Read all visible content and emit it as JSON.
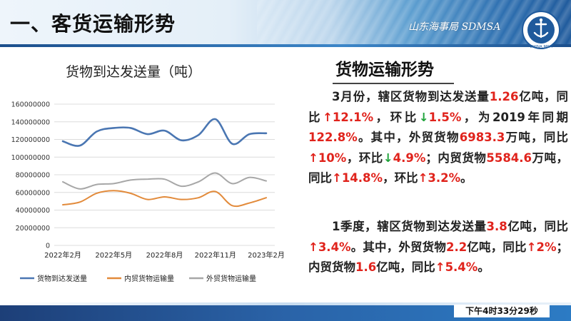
{
  "header": {
    "title": "一、客货运输形势",
    "brand": "山东海事局 SDMSA",
    "logo_text": "CHINA MSA"
  },
  "colors": {
    "series_total": "#4a76b2",
    "series_domestic": "#e28a3a",
    "series_foreign": "#a7a7a7",
    "highlight": "#e0231c",
    "down_arrow": "#1fa33a"
  },
  "chart_title": "货物到达发送量（吨）",
  "chart_data": {
    "type": "line",
    "title": "货物到达发送量（吨）",
    "ylim": [
      0,
      160000000
    ],
    "yticks": [
      0,
      20000000,
      40000000,
      60000000,
      80000000,
      100000000,
      120000000,
      140000000,
      160000000
    ],
    "x": [
      "2022年2月",
      "2022年3月",
      "2022年4月",
      "2022年5月",
      "2022年6月",
      "2022年7月",
      "2022年8月",
      "2022年9月",
      "2022年10月",
      "2022年11月",
      "2022年12月",
      "2023年1月",
      "2023年2月"
    ],
    "xticks": [
      "2022年2月",
      "2022年5月",
      "2022年8月",
      "2022年11月",
      "2023年2月"
    ],
    "legend_position": "bottom",
    "grid": true,
    "series": [
      {
        "name": "货物到达发送量",
        "values": [
          118000000,
          113000000,
          129000000,
          133000000,
          133000000,
          126000000,
          130000000,
          119000000,
          125000000,
          143000000,
          115000000,
          126000000,
          127000000
        ]
      },
      {
        "name": "内贸货物运输量",
        "values": [
          46000000,
          49000000,
          59000000,
          62000000,
          59000000,
          52000000,
          55000000,
          52000000,
          54000000,
          61000000,
          45000000,
          48000000,
          54000000
        ]
      },
      {
        "name": "外贸货物运输量",
        "values": [
          72000000,
          64000000,
          69000000,
          70000000,
          74000000,
          75000000,
          75000000,
          67000000,
          72000000,
          82000000,
          70000000,
          77000000,
          73000000
        ]
      }
    ]
  },
  "right": {
    "title": "货物运输形势",
    "p1": [
      {
        "t": "3月份，辖区货物到达发送量"
      },
      {
        "t": "1.26",
        "c": "red"
      },
      {
        "t": "亿吨，同比"
      },
      {
        "t": "↑",
        "c": "up"
      },
      {
        "t": "12.1%",
        "c": "red"
      },
      {
        "t": "，环比"
      },
      {
        "t": "↓",
        "c": "down"
      },
      {
        "t": "1.5%",
        "c": "red"
      },
      {
        "t": "，为2019年同期"
      },
      {
        "t": "122.8%",
        "c": "red"
      },
      {
        "t": "。其中，外贸货物"
      },
      {
        "t": "6983.3",
        "c": "red"
      },
      {
        "t": "万吨，同比"
      },
      {
        "t": "↑",
        "c": "up"
      },
      {
        "t": "10%",
        "c": "red"
      },
      {
        "t": "，环比"
      },
      {
        "t": "↓",
        "c": "down"
      },
      {
        "t": "4.9%",
        "c": "red"
      },
      {
        "t": "；内贸货物"
      },
      {
        "t": "5584.6",
        "c": "red"
      },
      {
        "t": "万吨，同比"
      },
      {
        "t": "↑",
        "c": "up"
      },
      {
        "t": "14.8%",
        "c": "red"
      },
      {
        "t": "，环比"
      },
      {
        "t": "↑",
        "c": "up"
      },
      {
        "t": "3.2%",
        "c": "red"
      },
      {
        "t": "。"
      }
    ],
    "p2": [
      {
        "t": "1季度，辖区货物到达发送量"
      },
      {
        "t": "3.8",
        "c": "red"
      },
      {
        "t": "亿吨，同比"
      },
      {
        "t": "↑",
        "c": "up"
      },
      {
        "t": "3.4%",
        "c": "red"
      },
      {
        "t": "。其中，外贸货物"
      },
      {
        "t": "2.2",
        "c": "red"
      },
      {
        "t": "亿吨，同比"
      },
      {
        "t": "↑",
        "c": "up"
      },
      {
        "t": "2%",
        "c": "red"
      },
      {
        "t": "；内贸货物"
      },
      {
        "t": "1.6",
        "c": "red"
      },
      {
        "t": "亿吨，同比"
      },
      {
        "t": "↑",
        "c": "up"
      },
      {
        "t": "5.4%",
        "c": "red"
      },
      {
        "t": "。"
      }
    ]
  },
  "footer": {
    "clock": "下午4时33分29秒"
  }
}
